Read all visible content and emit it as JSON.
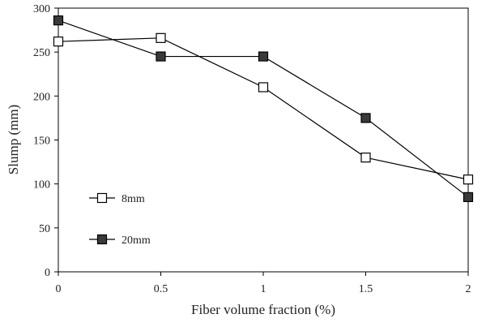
{
  "chart_data": {
    "type": "line",
    "title": "",
    "xlabel": "Fiber volume fraction (%)",
    "ylabel": "Slump (mm)",
    "x": [
      0,
      0.5,
      1,
      1.5,
      2
    ],
    "x_ticks": [
      "0",
      "0.5",
      "1",
      "1.5",
      "2"
    ],
    "y_ticks": [
      "0",
      "50",
      "100",
      "150",
      "200",
      "250",
      "300"
    ],
    "xlim": [
      0,
      2
    ],
    "ylim": [
      0,
      300
    ],
    "grid": false,
    "legend_position": "left",
    "series": [
      {
        "name": "8mm",
        "marker": "open-square",
        "color": "#ffffff",
        "values": [
          262,
          266,
          210,
          130,
          105
        ]
      },
      {
        "name": "20mm",
        "marker": "filled-square",
        "color": "#3a3a3a",
        "values": [
          286,
          245,
          245,
          175,
          85
        ]
      }
    ]
  }
}
